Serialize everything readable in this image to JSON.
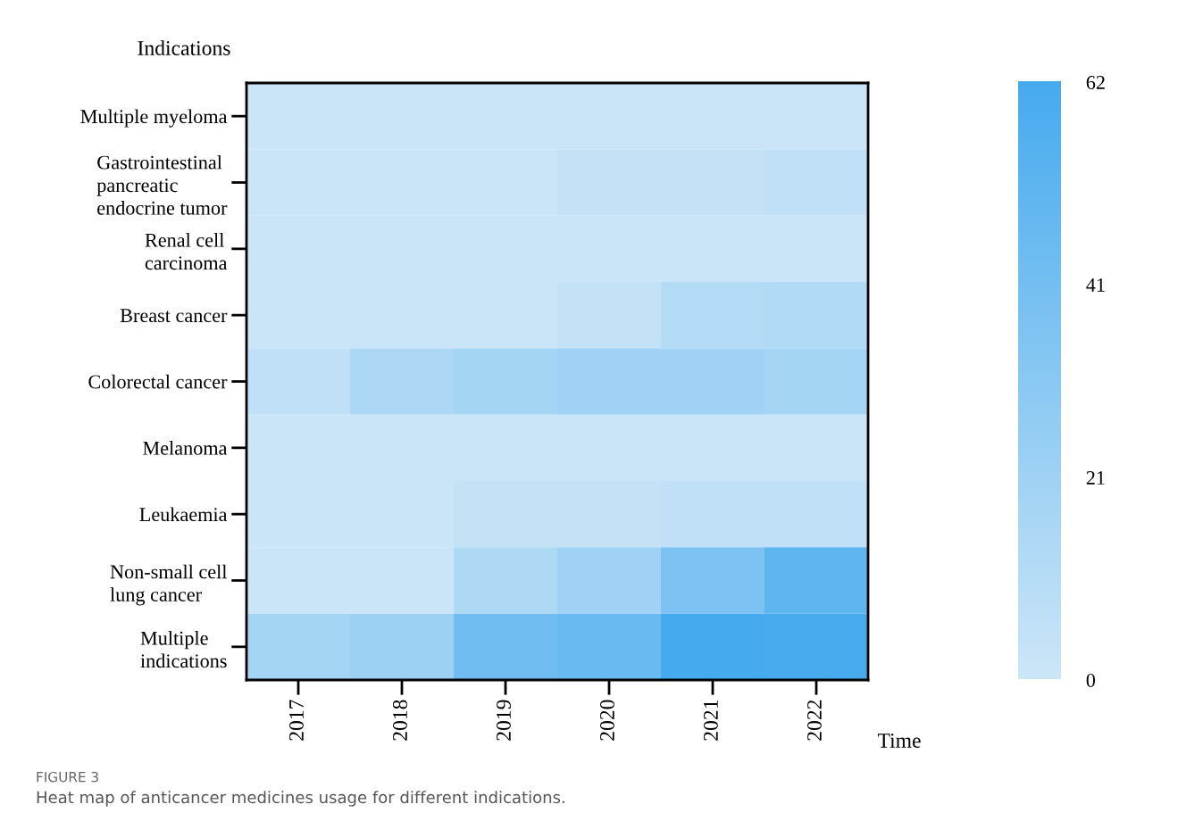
{
  "chart_data": {
    "type": "heatmap",
    "xlabel": "Time",
    "ylabel": "Indications",
    "categories": [
      "2017",
      "2018",
      "2019",
      "2020",
      "2021",
      "2022"
    ],
    "y_categories": [
      "Multiple myeloma",
      "Gastrointestinal\npancreatic\nendocrine tumor",
      "Renal cell\ncarcinoma",
      "Breast cancer",
      "Colorectal cancer",
      "Melanoma",
      "Leukaemia",
      "Non-small cell\nlung cancer",
      "Multiple\nindications"
    ],
    "cells": [
      [
        1,
        1,
        1,
        1,
        1,
        1
      ],
      [
        1,
        1,
        1,
        4,
        4,
        6
      ],
      [
        1,
        1,
        1,
        1,
        1,
        1
      ],
      [
        1,
        1,
        1,
        4,
        11,
        13
      ],
      [
        6,
        15,
        18,
        21,
        21,
        18
      ],
      [
        1,
        1,
        1,
        1,
        1,
        1
      ],
      [
        1,
        1,
        4,
        4,
        6,
        6
      ],
      [
        1,
        1,
        14,
        21,
        37,
        51
      ],
      [
        18,
        22,
        42,
        46,
        62,
        61
      ]
    ],
    "clim": [
      0,
      62
    ],
    "cticks": [
      0,
      21,
      41,
      62
    ],
    "annotations": [
      "FIGURE 3",
      "Heat map of anticancer medicines usage for different indications."
    ]
  }
}
